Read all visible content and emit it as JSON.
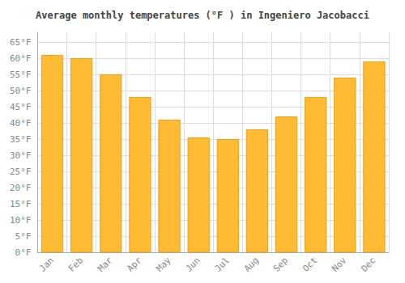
{
  "chart_data": {
    "type": "bar",
    "title": "Average monthly temperatures (°F ) in Ingeniero Jacobacci",
    "categories": [
      "Jan",
      "Feb",
      "Mar",
      "Apr",
      "May",
      "Jun",
      "Jul",
      "Aug",
      "Sep",
      "Oct",
      "Nov",
      "Dec"
    ],
    "values": [
      61,
      60,
      55,
      48,
      41,
      35.5,
      35,
      38,
      42,
      48,
      54,
      59
    ],
    "color": "#FFBB33",
    "ylim": [
      0,
      68
    ],
    "yticks": [
      {
        "value": 0,
        "label": "0°F"
      },
      {
        "value": 5,
        "label": "5°F"
      },
      {
        "value": 10,
        "label": "10°F"
      },
      {
        "value": 15,
        "label": "15°F"
      },
      {
        "value": 20,
        "label": "20°F"
      },
      {
        "value": 25,
        "label": "25°F"
      },
      {
        "value": 30,
        "label": "30°F"
      },
      {
        "value": 35,
        "label": "35°F"
      },
      {
        "value": 40,
        "label": "40°F"
      },
      {
        "value": 45,
        "label": "45°F"
      },
      {
        "value": 50,
        "label": "50°F"
      },
      {
        "value": 55,
        "label": "55°F"
      },
      {
        "value": 60,
        "label": "60°F"
      },
      {
        "value": 65,
        "label": "65°F"
      }
    ],
    "grid": true
  }
}
